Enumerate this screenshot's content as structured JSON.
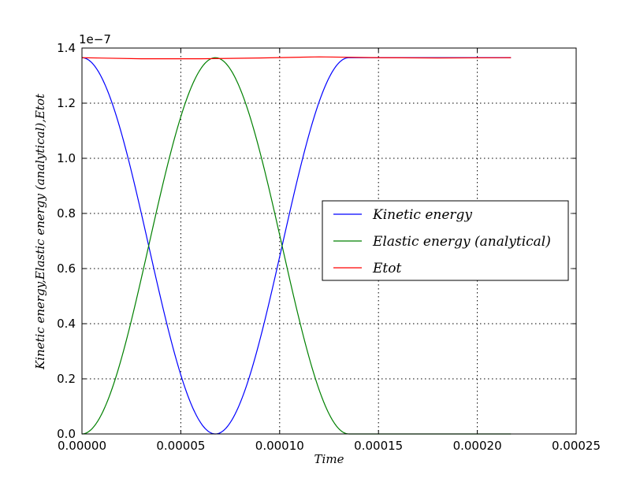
{
  "chart_data": {
    "type": "line",
    "xlabel": "Time",
    "ylabel": "Kinetic energy,Elastic energy (analytical),Etot",
    "y_offset_label": "1e−7",
    "xlim": [
      0,
      0.00025
    ],
    "ylim": [
      0,
      1.4
    ],
    "xticks": [
      "0.00000",
      "0.00005",
      "0.00010",
      "0.00015",
      "0.00020",
      "0.00025"
    ],
    "yticks": [
      "0.0",
      "0.2",
      "0.4",
      "0.6",
      "0.8",
      "1.0",
      "1.2",
      "1.4"
    ],
    "grid": true,
    "legend_position": "center-right",
    "series": [
      {
        "name": "Kinetic energy",
        "color": "#0000ff",
        "x": [
          0,
          6.8e-06,
          1.35e-05,
          2.03e-05,
          2.7e-05,
          3.38e-05,
          4.05e-05,
          4.73e-05,
          5.4e-05,
          6.08e-05,
          6.75e-05,
          7.43e-05,
          8.1e-05,
          8.78e-05,
          9.45e-05,
          0.0001013,
          0.000108,
          0.0001148,
          0.0001215,
          0.0001283,
          0.000135,
          0.00015,
          0.00017,
          0.00019,
          0.000217
        ],
        "values": [
          1.365,
          1.332,
          1.236,
          1.09,
          0.91,
          0.682,
          0.455,
          0.275,
          0.13,
          0.033,
          0.0,
          0.033,
          0.13,
          0.275,
          0.455,
          0.682,
          0.91,
          1.09,
          1.236,
          1.332,
          1.365,
          1.365,
          1.365,
          1.365,
          1.365
        ]
      },
      {
        "name": "Elastic energy (analytical)",
        "color": "#008000",
        "x": [
          0,
          6.8e-06,
          1.35e-05,
          2.03e-05,
          2.7e-05,
          3.38e-05,
          4.05e-05,
          4.73e-05,
          5.4e-05,
          6.08e-05,
          6.75e-05,
          7.43e-05,
          8.1e-05,
          8.78e-05,
          9.45e-05,
          0.0001013,
          0.000108,
          0.0001148,
          0.0001215,
          0.0001283,
          0.000135,
          0.00015,
          0.00017,
          0.00019,
          0.000217
        ],
        "values": [
          0.0,
          0.033,
          0.13,
          0.275,
          0.455,
          0.682,
          0.91,
          1.09,
          1.236,
          1.332,
          1.365,
          1.332,
          1.236,
          1.09,
          0.91,
          0.682,
          0.455,
          0.275,
          0.13,
          0.033,
          0.0,
          0.0,
          0.0,
          0.0,
          0.0
        ]
      },
      {
        "name": "Etot",
        "color": "#ff0000",
        "x": [
          0,
          3e-05,
          6e-05,
          9e-05,
          0.00012,
          0.00015,
          0.00018,
          0.000217
        ],
        "values": [
          1.365,
          1.361,
          1.361,
          1.364,
          1.368,
          1.365,
          1.364,
          1.365
        ]
      }
    ]
  }
}
